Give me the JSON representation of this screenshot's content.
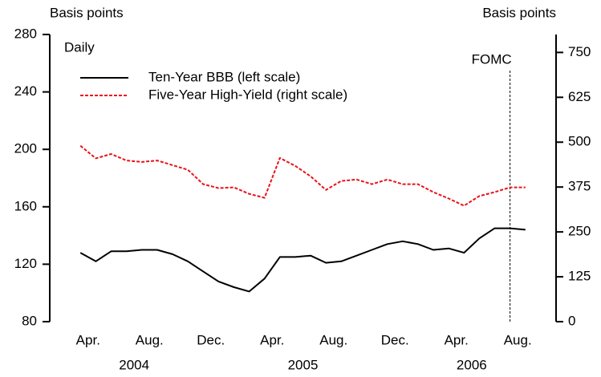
{
  "chart_data": {
    "type": "line",
    "y_axis_label": "Basis points",
    "y2_axis_label": "Basis points",
    "frequency_note": "Daily",
    "x": [
      "2004-04",
      "2004-05",
      "2004-06",
      "2004-07",
      "2004-08",
      "2004-09",
      "2004-10",
      "2004-11",
      "2004-12",
      "2005-01",
      "2005-02",
      "2005-03",
      "2005-04",
      "2005-05",
      "2005-06",
      "2005-07",
      "2005-08",
      "2005-09",
      "2005-10",
      "2005-11",
      "2005-12",
      "2006-01",
      "2006-02",
      "2006-03",
      "2006-04",
      "2006-05",
      "2006-06",
      "2006-07",
      "2006-08",
      "2006-09"
    ],
    "series": [
      {
        "name": "Ten-Year BBB (left scale)",
        "color": "#000000",
        "dashed": false,
        "axis": "y",
        "values": [
          128,
          122,
          129,
          129,
          130,
          130,
          127,
          122,
          115,
          108,
          104,
          101,
          110,
          125,
          125,
          126,
          121,
          122,
          126,
          130,
          134,
          136,
          134,
          130,
          131,
          128,
          138,
          145,
          145,
          144
        ]
      },
      {
        "name": "Five-Year High-Yield (right scale)",
        "color": "#e8131b",
        "dashed": true,
        "axis": "y2",
        "values": [
          490,
          455,
          467,
          449,
          445,
          449,
          436,
          423,
          383,
          372,
          374,
          356,
          345,
          456,
          434,
          405,
          367,
          392,
          396,
          383,
          396,
          383,
          383,
          361,
          343,
          323,
          350,
          361,
          374,
          374
        ]
      }
    ],
    "xlim": [
      "2004-02",
      "2006-11"
    ],
    "xticks": [
      {
        "value": "2004-04",
        "label": "Apr."
      },
      {
        "value": "2004-08",
        "label": "Aug."
      },
      {
        "value": "2004-12",
        "label": "Dec."
      },
      {
        "value": "2005-04",
        "label": "Apr."
      },
      {
        "value": "2005-08",
        "label": "Aug."
      },
      {
        "value": "2005-12",
        "label": "Dec."
      },
      {
        "value": "2006-04",
        "label": "Apr."
      },
      {
        "value": "2006-08",
        "label": "Aug."
      }
    ],
    "x_year_labels": [
      {
        "value": "2004-07",
        "label": "2004"
      },
      {
        "value": "2005-06",
        "label": "2005"
      },
      {
        "value": "2006-05",
        "label": "2006"
      }
    ],
    "ylim": [
      80,
      280
    ],
    "yticks": [
      80,
      120,
      160,
      200,
      240,
      280
    ],
    "y2lim": [
      0,
      800
    ],
    "y2ticks": [
      0,
      125,
      250,
      375,
      500,
      625,
      750
    ],
    "legend": "upper left",
    "annotations": [
      {
        "label": "FOMC",
        "x": "2006-08"
      }
    ]
  }
}
